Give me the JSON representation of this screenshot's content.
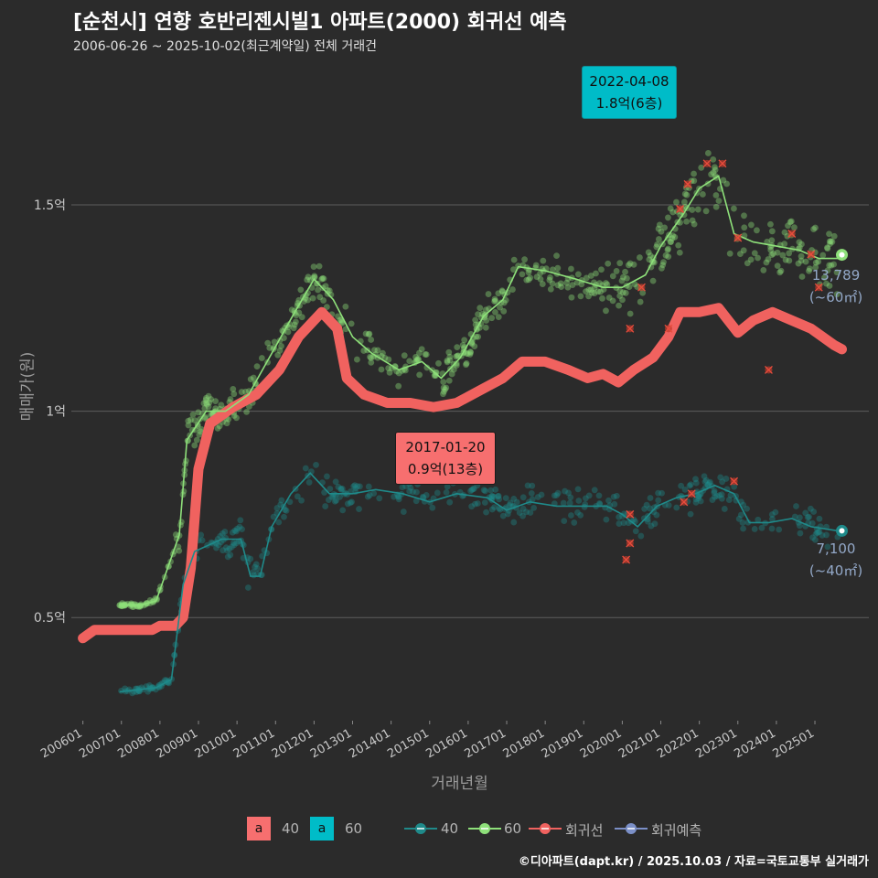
{
  "title": "[순천시] 연향 호반리젠시빌1 아파트(2000) 회귀선 예측",
  "subtitle": "2006-06-26 ~ 2025-10-02(최근계약일) 전체 거래건",
  "footer": "©디아파트(dapt.kr) / 2025.10.03 / 자료=국토교통부 실거래가",
  "colors": {
    "s40": "#1f8a8a",
    "s60": "#8ee07a",
    "reg": "#f0625f",
    "pred": "#7b8fc7",
    "callout_top": "#00bcc8",
    "callout_low": "#f76f6f",
    "bg": "#2b2b2b"
  },
  "annotations": {
    "high": {
      "date": "2022-04-08",
      "text": "1.8억(6층)"
    },
    "low": {
      "date": "2017-01-20",
      "text": "0.9억(13층)"
    },
    "end60": {
      "value": "13,789",
      "area": "(~60㎡)"
    },
    "end40": {
      "value": "7,100",
      "area": "(~40㎡)"
    }
  },
  "legend": {
    "fill_swatch_text": "a",
    "fill_items": [
      "40",
      "60"
    ],
    "line_items": [
      "40",
      "60",
      "회귀선",
      "회귀예측"
    ]
  },
  "chart_data": {
    "type": "scatter",
    "xlabel": "거래년월",
    "ylabel": "매매가(원)",
    "x_ticks": [
      "200601",
      "200701",
      "200801",
      "200901",
      "201001",
      "201101",
      "201201",
      "201301",
      "201401",
      "201501",
      "201601",
      "201701",
      "201801",
      "201901",
      "202001",
      "202101",
      "202201",
      "202301",
      "202401",
      "202501"
    ],
    "y_ticks": [
      {
        "value": 0.5,
        "label": "0.5억"
      },
      {
        "value": 1.0,
        "label": "1억"
      },
      {
        "value": 1.5,
        "label": "1.5억"
      }
    ],
    "xlim": [
      2005.7,
      2026.4
    ],
    "ylim": [
      0.25,
      1.85
    ],
    "grid": "horizontal",
    "legend_position": "bottom",
    "series": [
      {
        "name": "60",
        "kind": "moving-average",
        "points": [
          [
            2006.95,
            0.53
          ],
          [
            2007.5,
            0.53
          ],
          [
            2007.9,
            0.54
          ],
          [
            2008.5,
            0.7
          ],
          [
            2008.7,
            0.93
          ],
          [
            2009.2,
            1.0
          ],
          [
            2009.7,
            1.0
          ],
          [
            2010.3,
            1.04
          ],
          [
            2010.9,
            1.14
          ],
          [
            2011.5,
            1.24
          ],
          [
            2012.0,
            1.32
          ],
          [
            2012.5,
            1.27
          ],
          [
            2013.0,
            1.18
          ],
          [
            2013.5,
            1.14
          ],
          [
            2014.2,
            1.1
          ],
          [
            2014.8,
            1.12
          ],
          [
            2015.3,
            1.08
          ],
          [
            2015.8,
            1.13
          ],
          [
            2016.4,
            1.23
          ],
          [
            2016.9,
            1.27
          ],
          [
            2017.3,
            1.35
          ],
          [
            2018.0,
            1.34
          ],
          [
            2018.8,
            1.32
          ],
          [
            2019.5,
            1.3
          ],
          [
            2020.0,
            1.3
          ],
          [
            2020.6,
            1.33
          ],
          [
            2021.0,
            1.4
          ],
          [
            2021.6,
            1.48
          ],
          [
            2022.0,
            1.54
          ],
          [
            2022.5,
            1.57
          ],
          [
            2022.9,
            1.43
          ],
          [
            2023.4,
            1.41
          ],
          [
            2024.0,
            1.4
          ],
          [
            2024.6,
            1.39
          ],
          [
            2025.1,
            1.37
          ],
          [
            2025.6,
            1.37
          ]
        ]
      },
      {
        "name": "40",
        "kind": "moving-average",
        "points": [
          [
            2006.95,
            0.32
          ],
          [
            2007.9,
            0.33
          ],
          [
            2008.3,
            0.35
          ],
          [
            2008.6,
            0.58
          ],
          [
            2008.9,
            0.66
          ],
          [
            2009.6,
            0.69
          ],
          [
            2010.1,
            0.69
          ],
          [
            2010.35,
            0.6
          ],
          [
            2010.6,
            0.6
          ],
          [
            2010.9,
            0.72
          ],
          [
            2011.4,
            0.8
          ],
          [
            2011.9,
            0.85
          ],
          [
            2012.4,
            0.8
          ],
          [
            2013.0,
            0.8
          ],
          [
            2013.6,
            0.81
          ],
          [
            2014.3,
            0.8
          ],
          [
            2015.0,
            0.78
          ],
          [
            2015.7,
            0.8
          ],
          [
            2016.5,
            0.79
          ],
          [
            2017.0,
            0.76
          ],
          [
            2017.6,
            0.78
          ],
          [
            2018.3,
            0.77
          ],
          [
            2019.0,
            0.77
          ],
          [
            2019.6,
            0.77
          ],
          [
            2020.0,
            0.75
          ],
          [
            2020.4,
            0.72
          ],
          [
            2020.9,
            0.77
          ],
          [
            2021.4,
            0.79
          ],
          [
            2021.9,
            0.8
          ],
          [
            2022.4,
            0.82
          ],
          [
            2022.9,
            0.8
          ],
          [
            2023.3,
            0.73
          ],
          [
            2023.8,
            0.73
          ],
          [
            2024.4,
            0.74
          ],
          [
            2024.9,
            0.72
          ],
          [
            2025.6,
            0.71
          ]
        ]
      },
      {
        "name": "회귀선",
        "kind": "regression",
        "points": [
          [
            2006.0,
            0.45
          ],
          [
            2006.3,
            0.47
          ],
          [
            2007.2,
            0.47
          ],
          [
            2007.8,
            0.47
          ],
          [
            2008.0,
            0.48
          ],
          [
            2008.4,
            0.48
          ],
          [
            2008.6,
            0.5
          ],
          [
            2008.8,
            0.62
          ],
          [
            2009.0,
            0.86
          ],
          [
            2009.3,
            0.97
          ],
          [
            2009.9,
            1.01
          ],
          [
            2010.5,
            1.04
          ],
          [
            2011.1,
            1.1
          ],
          [
            2011.6,
            1.18
          ],
          [
            2012.2,
            1.24
          ],
          [
            2012.6,
            1.2
          ],
          [
            2012.85,
            1.08
          ],
          [
            2013.3,
            1.04
          ],
          [
            2013.9,
            1.02
          ],
          [
            2014.5,
            1.02
          ],
          [
            2015.1,
            1.01
          ],
          [
            2015.7,
            1.02
          ],
          [
            2016.3,
            1.05
          ],
          [
            2016.9,
            1.08
          ],
          [
            2017.4,
            1.12
          ],
          [
            2018.0,
            1.12
          ],
          [
            2018.6,
            1.1
          ],
          [
            2019.1,
            1.08
          ],
          [
            2019.5,
            1.09
          ],
          [
            2019.9,
            1.07
          ],
          [
            2020.3,
            1.1
          ],
          [
            2020.8,
            1.13
          ],
          [
            2021.2,
            1.18
          ],
          [
            2021.5,
            1.24
          ],
          [
            2022.0,
            1.24
          ],
          [
            2022.5,
            1.25
          ],
          [
            2023.0,
            1.19
          ],
          [
            2023.4,
            1.22
          ],
          [
            2023.9,
            1.24
          ],
          [
            2024.4,
            1.22
          ],
          [
            2024.9,
            1.2
          ],
          [
            2025.5,
            1.16
          ],
          [
            2025.7,
            1.15
          ]
        ]
      }
    ],
    "highlight_points": [
      {
        "series": "60",
        "x": 2025.7,
        "y": 1.3789
      },
      {
        "series": "40",
        "x": 2025.7,
        "y": 0.71
      }
    ],
    "outliers": [
      [
        2020.2,
        1.2
      ],
      [
        2020.5,
        1.3
      ],
      [
        2021.2,
        1.2
      ],
      [
        2021.5,
        1.49
      ],
      [
        2021.7,
        1.55
      ],
      [
        2022.2,
        1.6
      ],
      [
        2022.6,
        1.6
      ],
      [
        2023.0,
        1.42
      ],
      [
        2023.8,
        1.1
      ],
      [
        2024.4,
        1.43
      ],
      [
        2025.1,
        1.3
      ],
      [
        2020.2,
        0.75
      ],
      [
        2020.2,
        0.68
      ],
      [
        2020.1,
        0.64
      ],
      [
        2021.6,
        0.78
      ],
      [
        2021.8,
        0.8
      ],
      [
        2022.9,
        0.83
      ],
      [
        2024.9,
        1.38
      ]
    ]
  }
}
